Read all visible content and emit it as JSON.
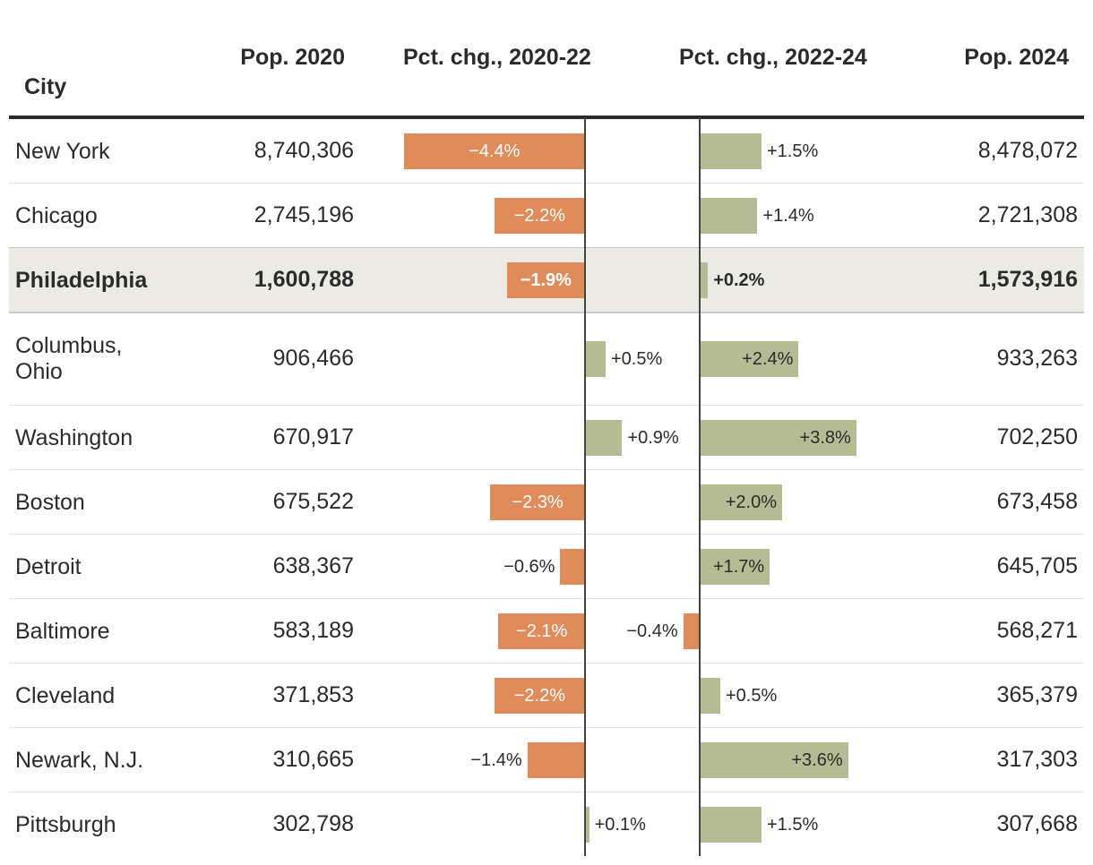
{
  "chart_data": {
    "type": "table",
    "columns": [
      "City",
      "Pop. 2020",
      "Pct. chg., 2020-22",
      "Pct. chg., 2022-24",
      "Pop. 2024"
    ],
    "highlight": "Philadelphia",
    "colors": {
      "negative": "#e08b5a",
      "positive": "#b5bb93",
      "highlight_row": "#ebebe4"
    },
    "rows": [
      {
        "city": "New York",
        "pop2020": "8,740,306",
        "chg1": -4.4,
        "chg1_label": "−4.4%",
        "chg2": 1.5,
        "chg2_label": "+1.5%",
        "pop2024": "8,478,072"
      },
      {
        "city": "Chicago",
        "pop2020": "2,745,196",
        "chg1": -2.2,
        "chg1_label": "−2.2%",
        "chg2": 1.4,
        "chg2_label": "+1.4%",
        "pop2024": "2,721,308"
      },
      {
        "city": "Philadelphia",
        "pop2020": "1,600,788",
        "chg1": -1.9,
        "chg1_label": "−1.9%",
        "chg2": 0.2,
        "chg2_label": "+0.2%",
        "pop2024": "1,573,916"
      },
      {
        "city": "Columbus, Ohio",
        "pop2020": "906,466",
        "chg1": 0.5,
        "chg1_label": "+0.5%",
        "chg2": 2.4,
        "chg2_label": "+2.4%",
        "pop2024": "933,263"
      },
      {
        "city": "Washington",
        "pop2020": "670,917",
        "chg1": 0.9,
        "chg1_label": "+0.9%",
        "chg2": 3.8,
        "chg2_label": "+3.8%",
        "pop2024": "702,250"
      },
      {
        "city": "Boston",
        "pop2020": "675,522",
        "chg1": -2.3,
        "chg1_label": "−2.3%",
        "chg2": 2.0,
        "chg2_label": "+2.0%",
        "pop2024": "673,458"
      },
      {
        "city": "Detroit",
        "pop2020": "638,367",
        "chg1": -0.6,
        "chg1_label": "−0.6%",
        "chg2": 1.7,
        "chg2_label": "+1.7%",
        "pop2024": "645,705"
      },
      {
        "city": "Baltimore",
        "pop2020": "583,189",
        "chg1": -2.1,
        "chg1_label": "−2.1%",
        "chg2": -0.4,
        "chg2_label": "−0.4%",
        "pop2024": "568,271"
      },
      {
        "city": "Cleveland",
        "pop2020": "371,853",
        "chg1": -2.2,
        "chg1_label": "−2.2%",
        "chg2": 0.5,
        "chg2_label": "+0.5%",
        "pop2024": "365,379"
      },
      {
        "city": "Newark, N.J.",
        "pop2020": "310,665",
        "chg1": -1.4,
        "chg1_label": "−1.4%",
        "chg2": 3.6,
        "chg2_label": "+3.6%",
        "pop2024": "317,303"
      },
      {
        "city": "Pittsburgh",
        "pop2020": "302,798",
        "chg1": 0.1,
        "chg1_label": "+0.1%",
        "chg2": 1.5,
        "chg2_label": "+1.5%",
        "pop2024": "307,668"
      }
    ]
  }
}
